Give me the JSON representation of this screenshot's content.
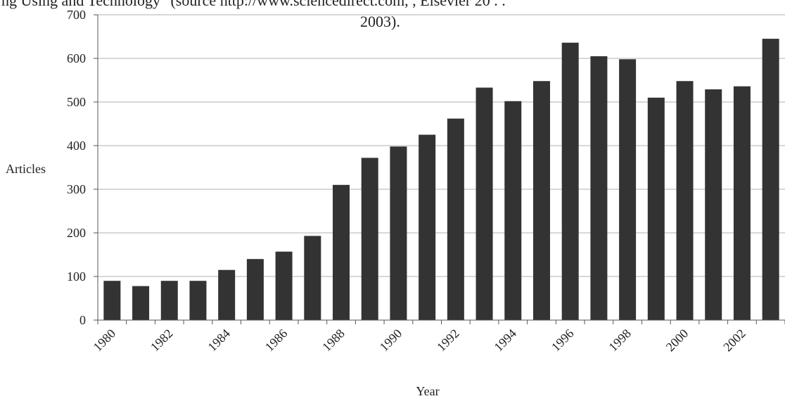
{
  "caption": {
    "line1": "ng Using and Technology\" (source http://www.sciencedirect.com, , Elsevier 20 . .",
    "line2": "2003)."
  },
  "chart_data": {
    "type": "bar",
    "categories": [
      "1980",
      "1981",
      "1982",
      "1983",
      "1984",
      "1985",
      "1986",
      "1987",
      "1988",
      "1989",
      "1990",
      "1991",
      "1992",
      "1993",
      "1994",
      "1995",
      "1996",
      "1997",
      "1998",
      "1999",
      "2000",
      "2001",
      "2002",
      "2003"
    ],
    "x_tick_labels": [
      "1980",
      "1982",
      "1984",
      "1986",
      "1988",
      "1990",
      "1992",
      "1994",
      "1996",
      "1998",
      "2000",
      "2002"
    ],
    "values": [
      90,
      78,
      90,
      90,
      115,
      140,
      157,
      193,
      310,
      372,
      398,
      425,
      462,
      533,
      502,
      548,
      636,
      605,
      598,
      510,
      548,
      529,
      536,
      645
    ],
    "xlabel": "Year",
    "ylabel": "Articles",
    "ylim": [
      0,
      700
    ],
    "yticks": [
      0,
      100,
      200,
      300,
      400,
      500,
      600,
      700
    ],
    "grid": true,
    "bar_color": "#333333"
  }
}
